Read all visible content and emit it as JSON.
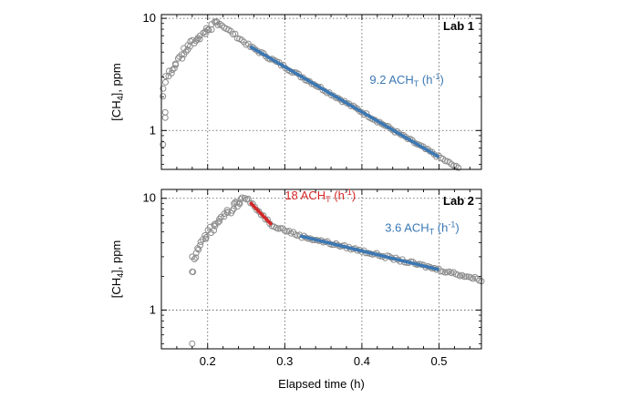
{
  "chart_data": [
    {
      "type": "scatter",
      "panel_label": "Lab 1",
      "xlabel": "",
      "ylabel_parts": [
        "[CH",
        "4",
        "], ppm"
      ],
      "yscale": "log",
      "xlim": [
        0.14,
        0.555
      ],
      "ylim": [
        0.45,
        10.8
      ],
      "yticks": [
        1,
        10
      ],
      "yticklabels": [
        "1",
        "10"
      ],
      "grid": true,
      "peak": {
        "x": 0.213,
        "y": 9.3
      },
      "rise_start": {
        "x": 0.142,
        "y": 2.0
      },
      "series": [
        {
          "name": "",
          "role": "measured",
          "color": "#8c8c8c",
          "x_range": [
            0.14,
            0.525
          ]
        },
        {
          "name": "",
          "role": "fit",
          "color": "#3b78b4",
          "start": {
            "x": 0.255,
            "y": 5.6
          },
          "end": {
            "x": 0.5,
            "y": 0.58
          }
        }
      ],
      "annotations": [
        {
          "text_parts": [
            "9.2 ACH",
            "T",
            " (h",
            "-1",
            ")"
          ],
          "x": 0.41,
          "y": 2.6,
          "color": "#3b78b4"
        }
      ]
    },
    {
      "type": "scatter",
      "panel_label": "Lab 2",
      "xlabel": "Elapsed time (h)",
      "ylabel_parts": [
        "[CH",
        "4",
        "], ppm"
      ],
      "yscale": "log",
      "xlim": [
        0.14,
        0.555
      ],
      "ylim": [
        0.45,
        12.0
      ],
      "yticks": [
        1,
        10
      ],
      "yticklabels": [
        "1",
        "10"
      ],
      "xticks": [
        0.2,
        0.3,
        0.4,
        0.5
      ],
      "xticklabels": [
        "0.2",
        "0.3",
        "0.4",
        "0.5"
      ],
      "grid": true,
      "peak": {
        "x": 0.25,
        "y": 10.3
      },
      "rise_start": {
        "x": 0.18,
        "y": 2.2
      },
      "series": [
        {
          "name": "",
          "role": "measured",
          "color": "#8c8c8c",
          "x_range": [
            0.18,
            0.555
          ]
        },
        {
          "name": "",
          "role": "fit-fast",
          "color": "#d62728",
          "start": {
            "x": 0.255,
            "y": 9.2
          },
          "end": {
            "x": 0.283,
            "y": 5.8
          }
        },
        {
          "name": "",
          "role": "fit-slow",
          "color": "#3b78b4",
          "start": {
            "x": 0.32,
            "y": 4.6
          },
          "end": {
            "x": 0.5,
            "y": 2.3
          }
        }
      ],
      "annotations": [
        {
          "text_parts": [
            "18 ACH",
            "T",
            " (h",
            "-1",
            ")"
          ],
          "x": 0.3,
          "y": 9.8,
          "color": "#d62728"
        },
        {
          "text_parts": [
            "3.6 ACH",
            "T",
            " (h",
            "-1",
            ")"
          ],
          "x": 0.43,
          "y": 5.0,
          "color": "#3b78b4"
        }
      ]
    }
  ]
}
